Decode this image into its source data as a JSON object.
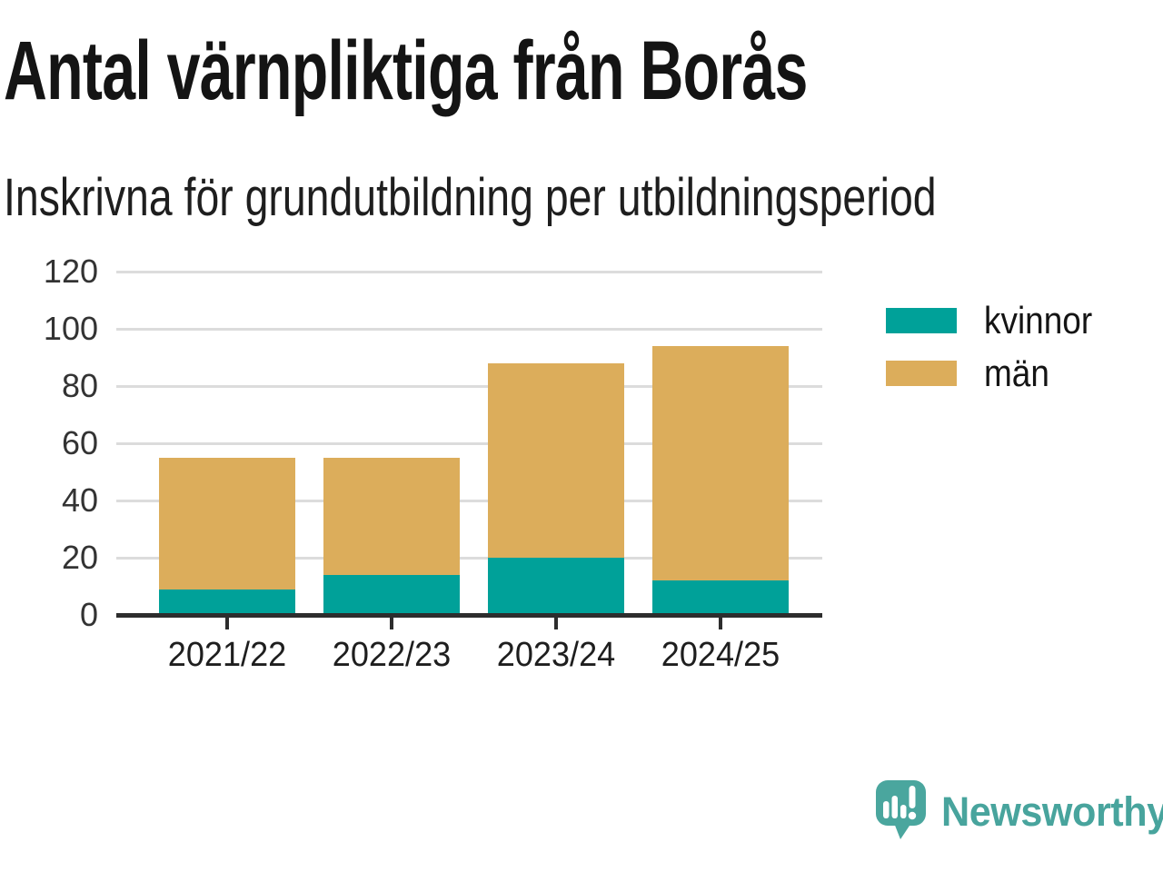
{
  "chart_data": {
    "type": "bar",
    "stacked": true,
    "title": "Antal värnpliktiga från Borås",
    "subtitle": "Inskrivna för grundutbildning per utbildningsperiod",
    "categories": [
      "2021/22",
      "2022/23",
      "2023/24",
      "2024/25"
    ],
    "series": [
      {
        "name": "kvinnor",
        "color": "#00a199",
        "values": [
          9,
          14,
          20,
          12
        ]
      },
      {
        "name": "män",
        "color": "#dcad5b",
        "values": [
          46,
          41,
          68,
          82
        ]
      }
    ],
    "stack_totals": [
      55,
      55,
      88,
      94
    ],
    "xlabel": "",
    "ylabel": "",
    "ylim": [
      0,
      120
    ],
    "yticks": [
      0,
      20,
      40,
      60,
      80,
      100,
      120
    ],
    "grid": true,
    "legend_position": "right-of-plot"
  },
  "colors": {
    "axis": "#2d2d2d",
    "gridline": "#dcdcdc",
    "title_text": "#141414",
    "tick_text": "#333333"
  },
  "branding": {
    "logo_text": "Newsworthy",
    "logo_color": "#48a49d",
    "logo_icon": "newsworthy-speech-bubble-bar-chart-icon"
  }
}
